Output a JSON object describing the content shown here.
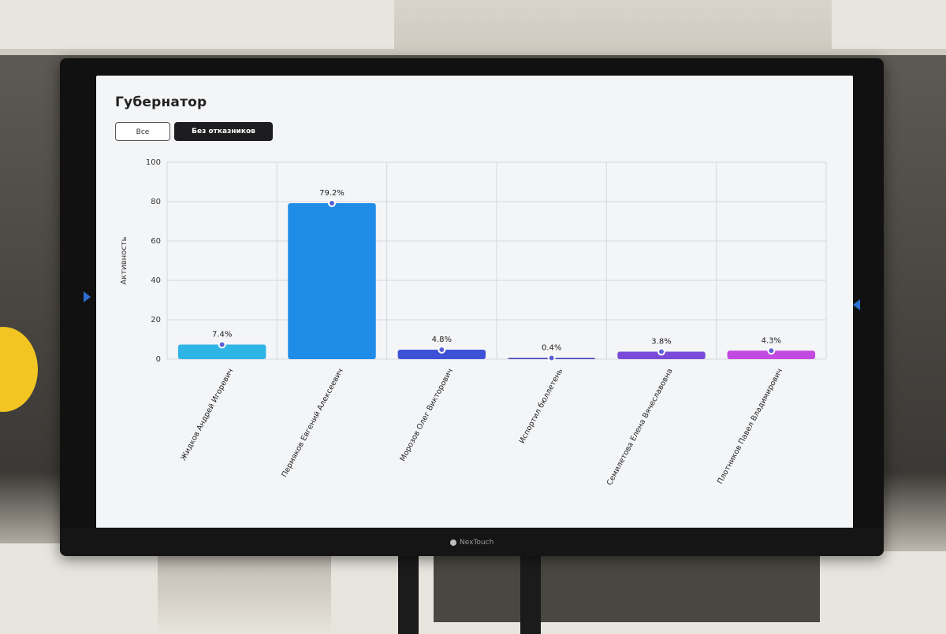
{
  "screen": {
    "title": "Губернатор",
    "filters": [
      {
        "label": "Все",
        "active": false
      },
      {
        "label": "Без отказников",
        "active": true
      }
    ]
  },
  "monitor": {
    "brand": "NexTouch"
  },
  "chart_data": {
    "type": "bar",
    "title": "",
    "xlabel": "",
    "ylabel": "Активность",
    "ylim": [
      0,
      100
    ],
    "yticks": [
      0,
      20,
      40,
      60,
      80,
      100
    ],
    "grid": true,
    "categories": [
      "Жидков Андрей Игоревич",
      "Пермяков Евгений Алексеевич",
      "Морозов Олег Викторович",
      "Испортил бюллетень",
      "Семилетова Елена Вячеславовна",
      "Плотников Павел Владимирович"
    ],
    "values": [
      7.4,
      79.2,
      4.8,
      0.4,
      3.8,
      4.3
    ],
    "labels": [
      "7.4%",
      "79.2%",
      "4.8%",
      "0.4%",
      "3.8%",
      "4.3%"
    ],
    "colors": [
      "#2fb4e6",
      "#1f8ce8",
      "#3d52d6",
      "#3b3fb6",
      "#7a4ad8",
      "#c34ae0"
    ]
  }
}
